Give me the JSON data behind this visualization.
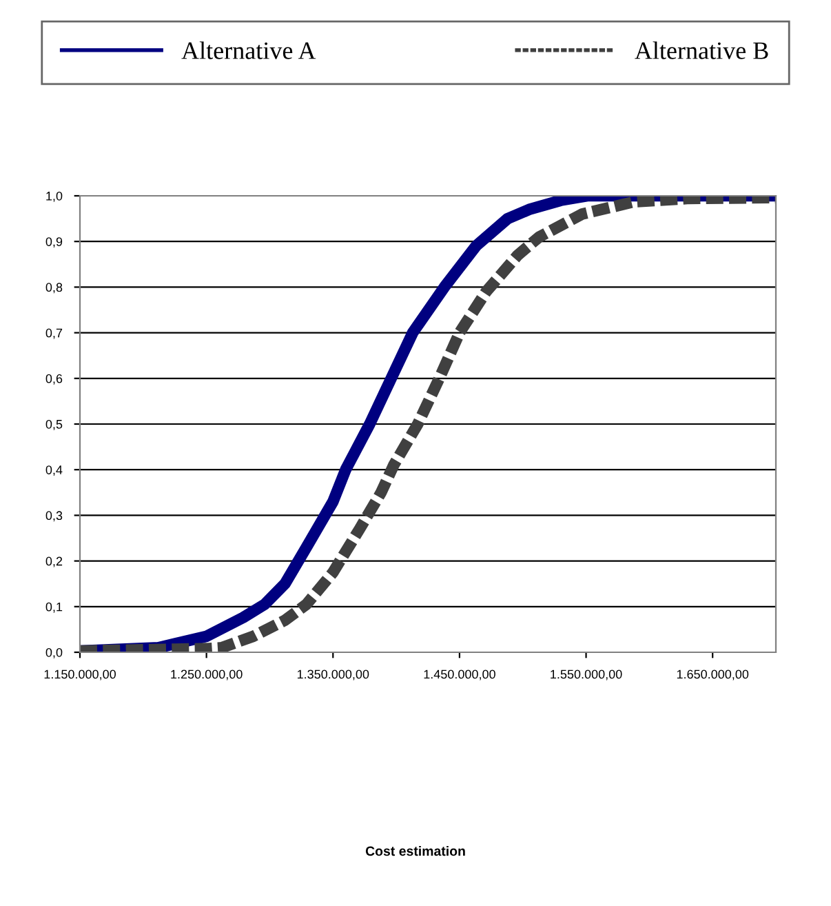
{
  "chart_data": {
    "type": "line",
    "annotations": [
      "Cost estimation"
    ],
    "xlim": [
      1150000,
      1700000
    ],
    "ylim": [
      0,
      1
    ],
    "xticks": [
      {
        "value": 1150000,
        "label": "1.150.000,00"
      },
      {
        "value": 1250000,
        "label": "1.250.000,00"
      },
      {
        "value": 1350000,
        "label": "1.350.000,00"
      },
      {
        "value": 1450000,
        "label": "1.450.000,00"
      },
      {
        "value": 1550000,
        "label": "1.550.000,00"
      },
      {
        "value": 1650000,
        "label": "1.650.000,00"
      }
    ],
    "yticks": [
      {
        "value": 0,
        "label": "0,0"
      },
      {
        "value": 0.1,
        "label": "0,1"
      },
      {
        "value": 0.2,
        "label": "0,2"
      },
      {
        "value": 0.3,
        "label": "0,3"
      },
      {
        "value": 0.4,
        "label": "0,4"
      },
      {
        "value": 0.5,
        "label": "0,5"
      },
      {
        "value": 0.6,
        "label": "0,6"
      },
      {
        "value": 0.7,
        "label": "0,7"
      },
      {
        "value": 0.8,
        "label": "0,8"
      },
      {
        "value": 0.9,
        "label": "0,9"
      },
      {
        "value": 1,
        "label": "1,0"
      }
    ],
    "grid": "y",
    "legend": "top",
    "series": [
      {
        "name": "Alternative A",
        "color": "#000080",
        "line_style": "solid",
        "x": [
          1150000,
          1212000,
          1250000,
          1279000,
          1296000,
          1312000,
          1329000,
          1350000,
          1360000,
          1379000,
          1396000,
          1413000,
          1438000,
          1463000,
          1488000,
          1505000,
          1530000,
          1551000,
          1700000
        ],
        "values": [
          0.003,
          0.01,
          0.035,
          0.076,
          0.105,
          0.15,
          0.23,
          0.33,
          0.4,
          0.5,
          0.6,
          0.7,
          0.8,
          0.89,
          0.95,
          0.97,
          0.99,
          1.0,
          1.0
        ]
      },
      {
        "name": "Alternative B",
        "color": "#404040",
        "line_style": "dashed",
        "x": [
          1150000,
          1250000,
          1262000,
          1287000,
          1312000,
          1329000,
          1350000,
          1371000,
          1388000,
          1398000,
          1417000,
          1434000,
          1450000,
          1471000,
          1496000,
          1513000,
          1547000,
          1588000,
          1630000,
          1700000
        ],
        "values": [
          0.003,
          0.008,
          0.01,
          0.035,
          0.07,
          0.105,
          0.175,
          0.27,
          0.35,
          0.41,
          0.5,
          0.6,
          0.7,
          0.79,
          0.87,
          0.91,
          0.96,
          0.987,
          0.994,
          0.996
        ]
      }
    ]
  }
}
